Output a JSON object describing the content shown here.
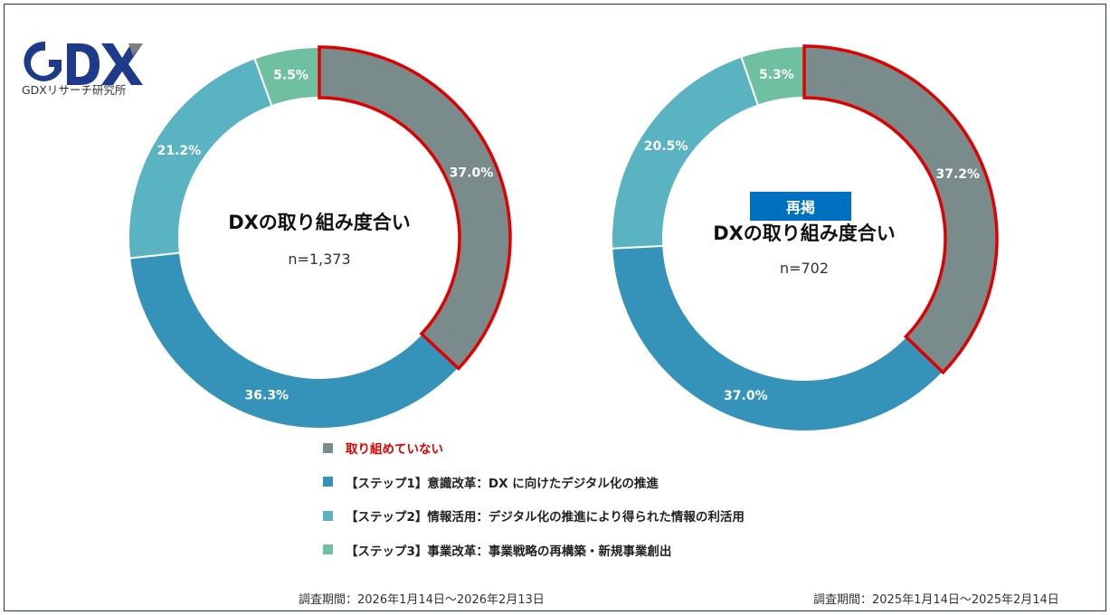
{
  "logo": {
    "caption": "GDXリサーチ研究所",
    "name": "GDX"
  },
  "colors": {
    "not_started": "#7a8b8c",
    "step1": "#3592b8",
    "step2": "#59b3c1",
    "step3": "#6ec0a0",
    "highlight_border": "#e00000",
    "badge": "#0070c0"
  },
  "chart_data": [
    {
      "type": "pie",
      "title": "DXの取り組み度合い",
      "sample": "n=1,373",
      "categories": [
        "取り組めていない",
        "【ステップ1】意識改革：DX に向けたデジタル化の推進",
        "【ステップ2】情報活用：デジタル化の推進により得られた情報の利活用",
        "【ステップ3】事業改革：事業戦略の再構築・新規事業創出"
      ],
      "values": [
        37.0,
        36.3,
        21.2,
        5.5
      ],
      "labels": [
        "37.0%",
        "36.3%",
        "21.2%",
        "5.5%"
      ],
      "period": "調査期間：2026年1月14日～2026年2月13日"
    },
    {
      "type": "pie",
      "title": "DXの取り組み度合い",
      "badge": "再掲",
      "sample": "n=702",
      "categories": [
        "取り組めていない",
        "【ステップ1】意識改革：DX に向けたデジタル化の推進",
        "【ステップ2】情報活用：デジタル化の推進により得られた情報の利活用",
        "【ステップ3】事業改革：事業戦略の再構築・新規事業創出"
      ],
      "values": [
        37.2,
        37.0,
        20.5,
        5.3
      ],
      "labels": [
        "37.2%",
        "37.0%",
        "20.5%",
        "5.3%"
      ],
      "period": "調査期間：2025年1月14日～2025年2月14日"
    }
  ],
  "legend": [
    {
      "label": "取り組めていない",
      "color": "#7a8b8c",
      "highlight": true
    },
    {
      "label": "【ステップ1】意識改革：DX に向けたデジタル化の推進",
      "color": "#3592b8",
      "highlight": false
    },
    {
      "label": "【ステップ2】情報活用：デジタル化の推進により得られた情報の利活用",
      "color": "#59b3c1",
      "highlight": false
    },
    {
      "label": "【ステップ3】事業改革：事業戦略の再構築・新規事業創出",
      "color": "#6ec0a0",
      "highlight": false
    }
  ]
}
